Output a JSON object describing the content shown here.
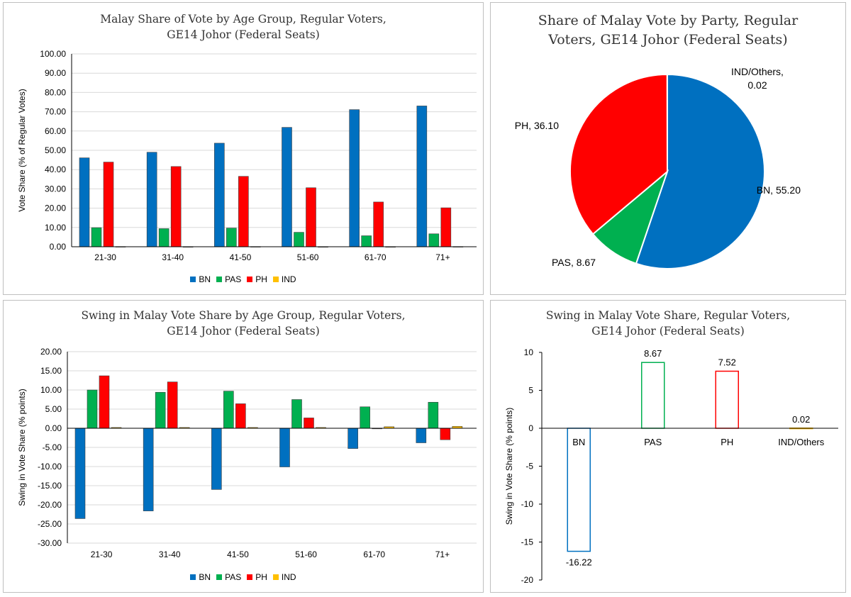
{
  "colors": {
    "BN": "#0070C0",
    "PAS": "#00B050",
    "PH": "#FF0000",
    "IND": "#FFC000"
  },
  "chart_data": [
    {
      "id": "age_share",
      "type": "bar",
      "title_lines": [
        "Malay Share of Vote by Age Group, Regular Voters,",
        "GE14 Johor (Federal Seats)"
      ],
      "xlabel": "",
      "ylabel": "Vote Share (% of Regular Votes)",
      "ylim": [
        0,
        100
      ],
      "yticks": [
        "0.00",
        "10.00",
        "20.00",
        "30.00",
        "40.00",
        "50.00",
        "60.00",
        "70.00",
        "80.00",
        "90.00",
        "100.00"
      ],
      "categories": [
        "21-30",
        "31-40",
        "41-50",
        "51-60",
        "61-70",
        "71+"
      ],
      "series": [
        {
          "name": "BN",
          "values": [
            46.1,
            49.0,
            53.7,
            61.9,
            71.1,
            73.0
          ]
        },
        {
          "name": "PAS",
          "values": [
            9.9,
            9.4,
            9.7,
            7.5,
            5.7,
            6.7
          ]
        },
        {
          "name": "PH",
          "values": [
            43.9,
            41.6,
            36.5,
            30.6,
            23.2,
            20.2
          ]
        },
        {
          "name": "IND",
          "values": [
            0.1,
            0.05,
            0.1,
            0.05,
            0.05,
            0.1
          ]
        }
      ],
      "legend": [
        "BN",
        "PAS",
        "PH",
        "IND"
      ],
      "legend_position": "bottom"
    },
    {
      "id": "party_pie",
      "type": "pie",
      "title_lines": [
        "Share of Malay Vote by Party, Regular",
        "Voters, GE14 Johor (Federal Seats)"
      ],
      "slices": [
        {
          "name": "BN",
          "value": 55.2,
          "label_lines": [
            "BN, 55.20"
          ]
        },
        {
          "name": "PAS",
          "value": 8.67,
          "label_lines": [
            "PAS, 8.67"
          ]
        },
        {
          "name": "PH",
          "value": 36.1,
          "label_lines": [
            "PH, 36.10"
          ]
        },
        {
          "name": "IND",
          "value": 0.02,
          "label_lines": [
            "IND/Others,",
            "0.02"
          ]
        }
      ]
    },
    {
      "id": "age_swing",
      "type": "bar",
      "title_lines": [
        "Swing in Malay Vote Share by Age Group, Regular Voters,",
        "GE14 Johor (Federal Seats)"
      ],
      "xlabel": "",
      "ylabel": "Swing in Vote Share (% points)",
      "ylim": [
        -30,
        20
      ],
      "yticks": [
        "-30.00",
        "-25.00",
        "-20.00",
        "-15.00",
        "-10.00",
        "-5.00",
        "0.00",
        "5.00",
        "10.00",
        "15.00",
        "20.00"
      ],
      "categories": [
        "21-30",
        "31-40",
        "41-50",
        "51-60",
        "61-70",
        "71+"
      ],
      "series": [
        {
          "name": "BN",
          "values": [
            -23.6,
            -21.6,
            -16.0,
            -10.1,
            -5.3,
            -3.8
          ]
        },
        {
          "name": "PAS",
          "values": [
            10.0,
            9.4,
            9.7,
            7.5,
            5.6,
            6.8
          ]
        },
        {
          "name": "PH",
          "values": [
            13.7,
            12.1,
            6.4,
            2.7,
            -0.1,
            -3.0
          ]
        },
        {
          "name": "IND",
          "values": [
            0.2,
            0.2,
            0.2,
            0.2,
            0.4,
            0.5
          ]
        }
      ],
      "legend": [
        "BN",
        "PAS",
        "PH",
        "IND"
      ],
      "legend_position": "bottom"
    },
    {
      "id": "party_swing",
      "type": "bar",
      "style": "outline",
      "title_lines": [
        "Swing in Malay Vote Share, Regular Voters,",
        "GE14 Johor (Federal Seats)"
      ],
      "xlabel": "",
      "ylabel": "Swing in Vote Share (% points)",
      "ylim": [
        -20,
        10
      ],
      "yticks": [
        "-20",
        "-15",
        "-10",
        "-5",
        "0",
        "5",
        "10"
      ],
      "categories": [
        "BN",
        "PAS",
        "PH",
        "IND/Others"
      ],
      "values": [
        -16.22,
        8.67,
        7.52,
        0.02
      ],
      "data_labels": [
        "-16.22",
        "8.67",
        "7.52",
        "0.02"
      ],
      "bar_colors": [
        "BN",
        "PAS",
        "PH",
        "IND"
      ]
    }
  ]
}
